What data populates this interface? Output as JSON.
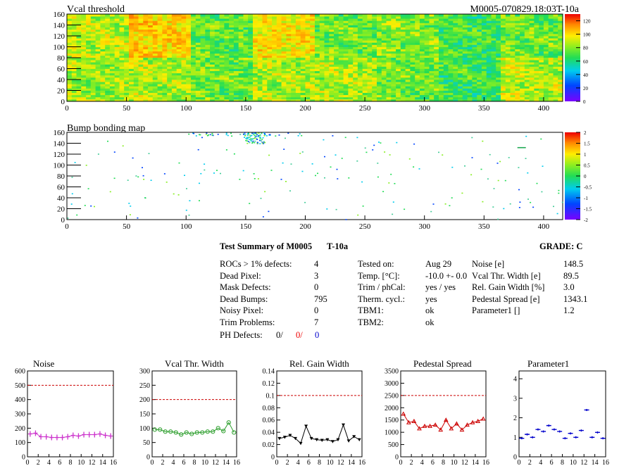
{
  "header": {
    "title_left": "Vcal threshold",
    "title_right": "M0005-070829.18:03T-10a"
  },
  "bump_title": "Bump bonding map",
  "summary": {
    "title": "Test Summary of M0005",
    "temp_tag": "T-10a",
    "grade": "GRADE:  C",
    "col1": [
      {
        "label": "ROCs > 1% defects:",
        "value": "4"
      },
      {
        "label": "Dead Pixel:",
        "value": "3"
      },
      {
        "label": "Mask Defects:",
        "value": "0"
      },
      {
        "label": "Dead Bumps:",
        "value": "795"
      },
      {
        "label": "Noisy Pixel:",
        "value": "0"
      },
      {
        "label": "Trim Problems:",
        "value": "7"
      }
    ],
    "ph_defects": {
      "label": "PH Defects:",
      "v1": "0/",
      "v2": "0/",
      "v3": "0"
    },
    "col2": [
      {
        "label": "Tested on:",
        "value": "Aug 29"
      },
      {
        "label": "Temp. [°C]:",
        "value": "-10.0 +- 0.0"
      },
      {
        "label": "Trim / phCal:",
        "value": "yes / yes"
      },
      {
        "label": "Therm. cycl.:",
        "value": "yes"
      },
      {
        "label": "TBM1:",
        "value": "ok"
      },
      {
        "label": "TBM2:",
        "value": "ok"
      }
    ],
    "col3": [
      {
        "label": "Noise [e]",
        "value": "148.5"
      },
      {
        "label": "Vcal Thr. Width [e]",
        "value": "89.5"
      },
      {
        "label": "Rel. Gain Width [%]",
        "value": "3.0"
      },
      {
        "label": "Pedestal Spread [e]",
        "value": "1343.1"
      },
      {
        "label": "Parameter1 []",
        "value": "1.2"
      }
    ]
  },
  "chart_data": [
    {
      "type": "heatmap",
      "title": "Vcal threshold",
      "xlim": [
        0,
        416
      ],
      "ylim": [
        0,
        160
      ],
      "xticks": [
        0,
        50,
        100,
        150,
        200,
        250,
        300,
        350,
        400
      ],
      "yticks": [
        0,
        20,
        40,
        60,
        80,
        100,
        120,
        140,
        160
      ],
      "zticks": [
        0,
        20,
        40,
        60,
        80,
        100,
        120
      ],
      "roc_values_top": [
        82,
        92,
        96,
        105,
        70,
        88,
        92,
        88,
        72,
        68,
        75,
        72,
        65,
        68,
        72,
        92
      ],
      "roc_values_bottom": [
        78,
        72,
        80,
        85,
        72,
        75,
        80,
        85,
        80,
        82,
        72,
        70,
        65,
        78,
        82,
        95
      ]
    },
    {
      "type": "heatmap",
      "title": "Bump bonding map",
      "xlim": [
        0,
        416
      ],
      "ylim": [
        0,
        160
      ],
      "xticks": [
        0,
        50,
        100,
        150,
        200,
        250,
        300,
        350,
        400
      ],
      "yticks": [
        0,
        20,
        40,
        60,
        80,
        100,
        120,
        140,
        160
      ],
      "zticks": [
        2,
        1.5,
        1,
        0.5,
        0,
        -0.5,
        -1,
        -1.5,
        -2
      ]
    },
    {
      "type": "line",
      "title": "Noise",
      "xlim": [
        0,
        16
      ],
      "ylim": [
        0,
        600
      ],
      "yticks": [
        0,
        100,
        200,
        300,
        400,
        500,
        600
      ],
      "xticks": [
        0,
        2,
        4,
        6,
        8,
        10,
        12,
        14,
        16
      ],
      "reference": 500,
      "color": "#cc33cc",
      "marker": "plus",
      "values": [
        160,
        165,
        140,
        140,
        135,
        135,
        135,
        140,
        150,
        145,
        155,
        155,
        155,
        160,
        150,
        145
      ]
    },
    {
      "type": "line",
      "title": "Vcal Thr. Width",
      "xlim": [
        0,
        16
      ],
      "ylim": [
        0,
        300
      ],
      "yticks": [
        0,
        50,
        100,
        150,
        200,
        250,
        300
      ],
      "xticks": [
        0,
        2,
        4,
        6,
        8,
        10,
        12,
        14,
        16
      ],
      "reference": 200,
      "color": "#2a9d2a",
      "marker": "circle",
      "values": [
        95,
        95,
        88,
        88,
        85,
        78,
        85,
        80,
        85,
        85,
        88,
        88,
        100,
        90,
        120,
        85
      ]
    },
    {
      "type": "line",
      "title": "Rel. Gain Width",
      "xlim": [
        0,
        16
      ],
      "ylim": [
        0,
        0.14
      ],
      "yticks": [
        0,
        0.02,
        0.04,
        0.06,
        0.08,
        0.1,
        0.12,
        0.14
      ],
      "xticks": [
        0,
        2,
        4,
        6,
        8,
        10,
        12,
        14,
        16
      ],
      "reference": 0.1,
      "color": "#000000",
      "marker": "triangle-down",
      "values": [
        0.03,
        0.032,
        0.035,
        0.03,
        0.022,
        0.05,
        0.03,
        0.028,
        0.027,
        0.028,
        0.025,
        0.028,
        0.052,
        0.026,
        0.033,
        0.028
      ]
    },
    {
      "type": "line",
      "title": "Pedestal Spread",
      "xlim": [
        0,
        16
      ],
      "ylim": [
        0,
        3500
      ],
      "yticks": [
        0,
        500,
        1000,
        1500,
        2000,
        2500,
        3000,
        3500
      ],
      "xticks": [
        0,
        2,
        4,
        6,
        8,
        10,
        12,
        14,
        16
      ],
      "reference": 2500,
      "color": "#cc0000",
      "marker": "triangle-up",
      "values": [
        1750,
        1400,
        1450,
        1150,
        1250,
        1250,
        1300,
        1100,
        1500,
        1150,
        1350,
        1100,
        1300,
        1400,
        1450,
        1550
      ]
    },
    {
      "type": "scatter",
      "title": "Parameter1",
      "xlim": [
        0,
        16
      ],
      "ylim": [
        0,
        4.4
      ],
      "yticks": [
        0,
        1,
        2,
        3,
        4
      ],
      "xticks": [
        0,
        2,
        4,
        6,
        8,
        10,
        12,
        14,
        16
      ],
      "color": "#0000cc",
      "marker": "hbar",
      "values": [
        0.95,
        1.15,
        1.0,
        1.4,
        1.3,
        1.6,
        1.4,
        1.3,
        0.95,
        1.2,
        1.0,
        1.35,
        2.4,
        1.0,
        1.25,
        0.95
      ]
    }
  ]
}
